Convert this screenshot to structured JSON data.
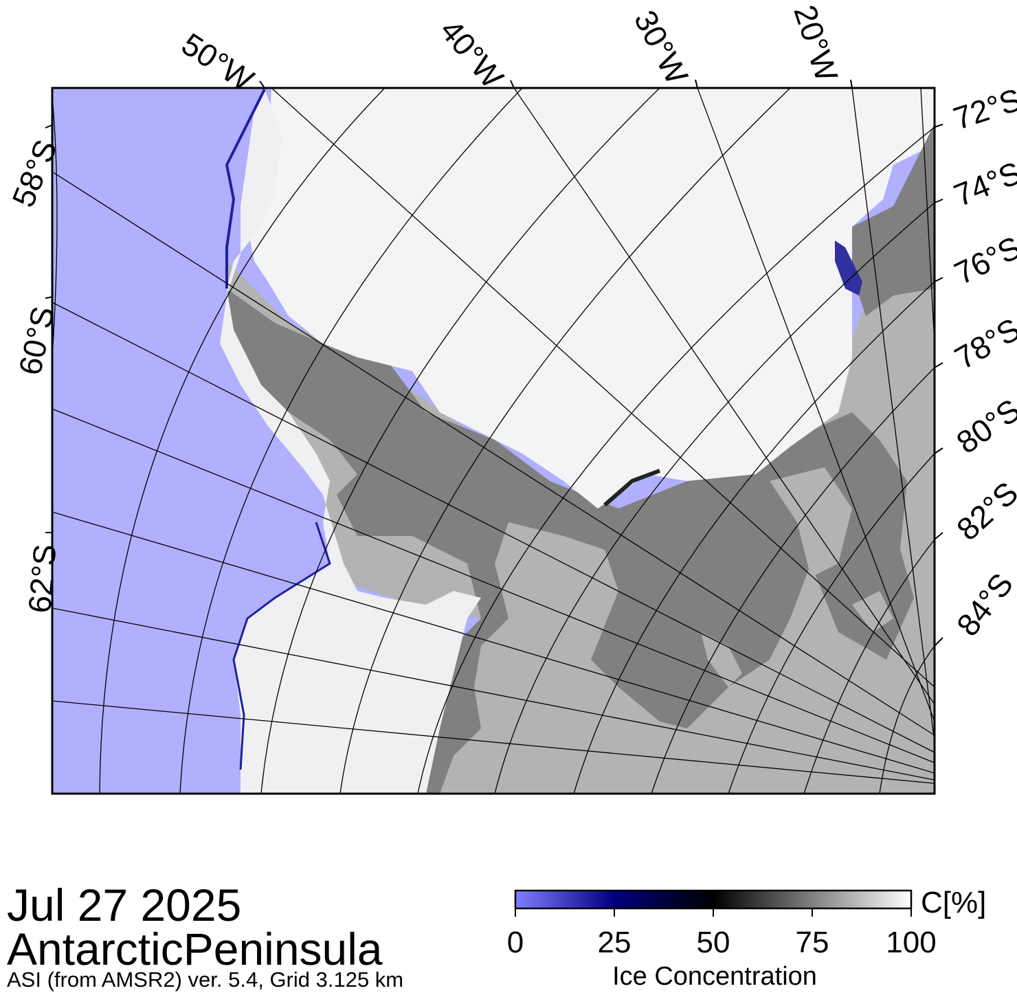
{
  "map": {
    "date": "Jul 27 2025",
    "region": "AntarcticPeninsula",
    "product": "ASI (from AMSR2) ver. 5.4,  Grid 3.125 km",
    "longitude_labels": [
      "50°W",
      "40°W",
      "30°W",
      "20°W"
    ],
    "latitude_labels_right": [
      "72°S",
      "74°S",
      "76°S",
      "78°S",
      "80°S",
      "82°S",
      "84°S"
    ],
    "latitude_labels_left": [
      "58°S",
      "60°S",
      "62°S"
    ],
    "colors": {
      "ocean_open_water": "#b0b0ff",
      "land": "#808080",
      "ice_shelf": "#b3b3b3",
      "sea_ice_full": "#ffffff",
      "frame": "#000000"
    }
  },
  "colorbar": {
    "title": "Ice Concentration",
    "unit": "C[%]",
    "ticks": [
      "0",
      "25",
      "50",
      "75",
      "100"
    ],
    "gradient": [
      "#7f7fff",
      "#00007f",
      "#000000",
      "#808080",
      "#ffffff"
    ]
  }
}
